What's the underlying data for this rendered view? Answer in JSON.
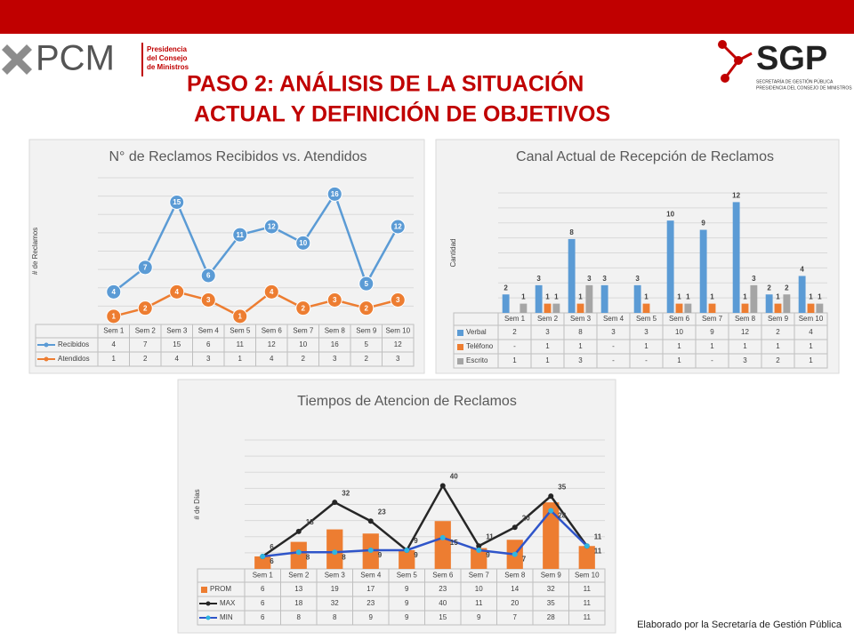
{
  "header": {
    "left_logo": "PCM",
    "left_logo_lines": [
      "Presidencia",
      "del Consejo",
      "de Ministros"
    ],
    "right_logo": "SGP",
    "right_logo_lines": [
      "SECRETARÍA DE GESTIÓN PÚBLICA",
      "PRESIDENCIA DEL CONSEJO DE MINISTROS"
    ],
    "title_lines": [
      "PASO 2: ANÁLISIS DE LA SITUACIÓN",
      "ACTUAL Y DEFINICIÓN DE OBJETIVOS"
    ]
  },
  "chart_data": [
    {
      "type": "line",
      "title": "N° de Reclamos Recibidos vs. Atendidos",
      "y_label": "# de Reclamos",
      "ylim": [
        0,
        18
      ],
      "grid": true,
      "categories": [
        "Sem 1",
        "Sem 2",
        "Sem 3",
        "Sem 4",
        "Sem 5",
        "Sem 6",
        "Sem 7",
        "Sem 8",
        "Sem 9",
        "Sem 10"
      ],
      "series": [
        {
          "name": "Recibidos",
          "color": "#5b9bd5",
          "values": [
            4,
            7,
            15,
            6,
            11,
            12,
            10,
            16,
            5,
            12
          ]
        },
        {
          "name": "Atendidos",
          "color": "#ed7d31",
          "values": [
            1,
            2,
            4,
            3,
            1,
            4,
            2,
            3,
            2,
            3
          ]
        }
      ]
    },
    {
      "type": "bar",
      "title": "Canal Actual de Recepción de Reclamos",
      "y_label": "Cantidad",
      "ylim": [
        0,
        13
      ],
      "grid": true,
      "categories": [
        "Sem 1",
        "Sem 2",
        "Sem 3",
        "Sem 4",
        "Sem 5",
        "Sem 6",
        "Sem 7",
        "Sem 8",
        "Sem 9",
        "Sem 10"
      ],
      "series": [
        {
          "name": "Verbal",
          "color": "#5b9bd5",
          "values": [
            2,
            3,
            8,
            3,
            3,
            10,
            9,
            12,
            2,
            4
          ]
        },
        {
          "name": "Teléfono",
          "color": "#ed7d31",
          "values": [
            null,
            1,
            1,
            null,
            1,
            1,
            1,
            1,
            1,
            1
          ],
          "value_labels": [
            "-",
            "1",
            "1",
            "-",
            "1",
            "1",
            "1",
            "1",
            "1",
            "1"
          ]
        },
        {
          "name": "Escrito",
          "color": "#a5a5a5",
          "values": [
            1,
            1,
            3,
            null,
            null,
            1,
            null,
            3,
            2,
            1
          ],
          "value_labels": [
            "1",
            "1",
            "3",
            "-",
            "-",
            "1",
            "-",
            "3",
            "2",
            "1"
          ]
        }
      ]
    },
    {
      "type": "combo",
      "title": "Tiempos de Atencion de Reclamos",
      "y_label": "# de Días",
      "ylim": [
        0,
        62
      ],
      "grid": true,
      "categories": [
        "Sem 1",
        "Sem 2",
        "Sem 3",
        "Sem 4",
        "Sem 5",
        "Sem 6",
        "Sem 7",
        "Sem 8",
        "Sem 9",
        "Sem 10"
      ],
      "series": [
        {
          "name": "PROM",
          "type": "bar",
          "color": "#ed7d31",
          "values": [
            6,
            13,
            19,
            17,
            9,
            23,
            10,
            14,
            32,
            11
          ]
        },
        {
          "name": "MAX",
          "type": "line",
          "color": "#262626",
          "values": [
            6,
            18,
            32,
            23,
            9,
            40,
            11,
            20,
            35,
            11
          ]
        },
        {
          "name": "MIN",
          "type": "line",
          "color": "#2f55c9",
          "marker_color": "#2fb5e0",
          "values": [
            6,
            8,
            8,
            9,
            9,
            15,
            9,
            7,
            28,
            11
          ]
        }
      ]
    }
  ],
  "footer": "Elaborado por la Secretaría de Gestión Pública"
}
